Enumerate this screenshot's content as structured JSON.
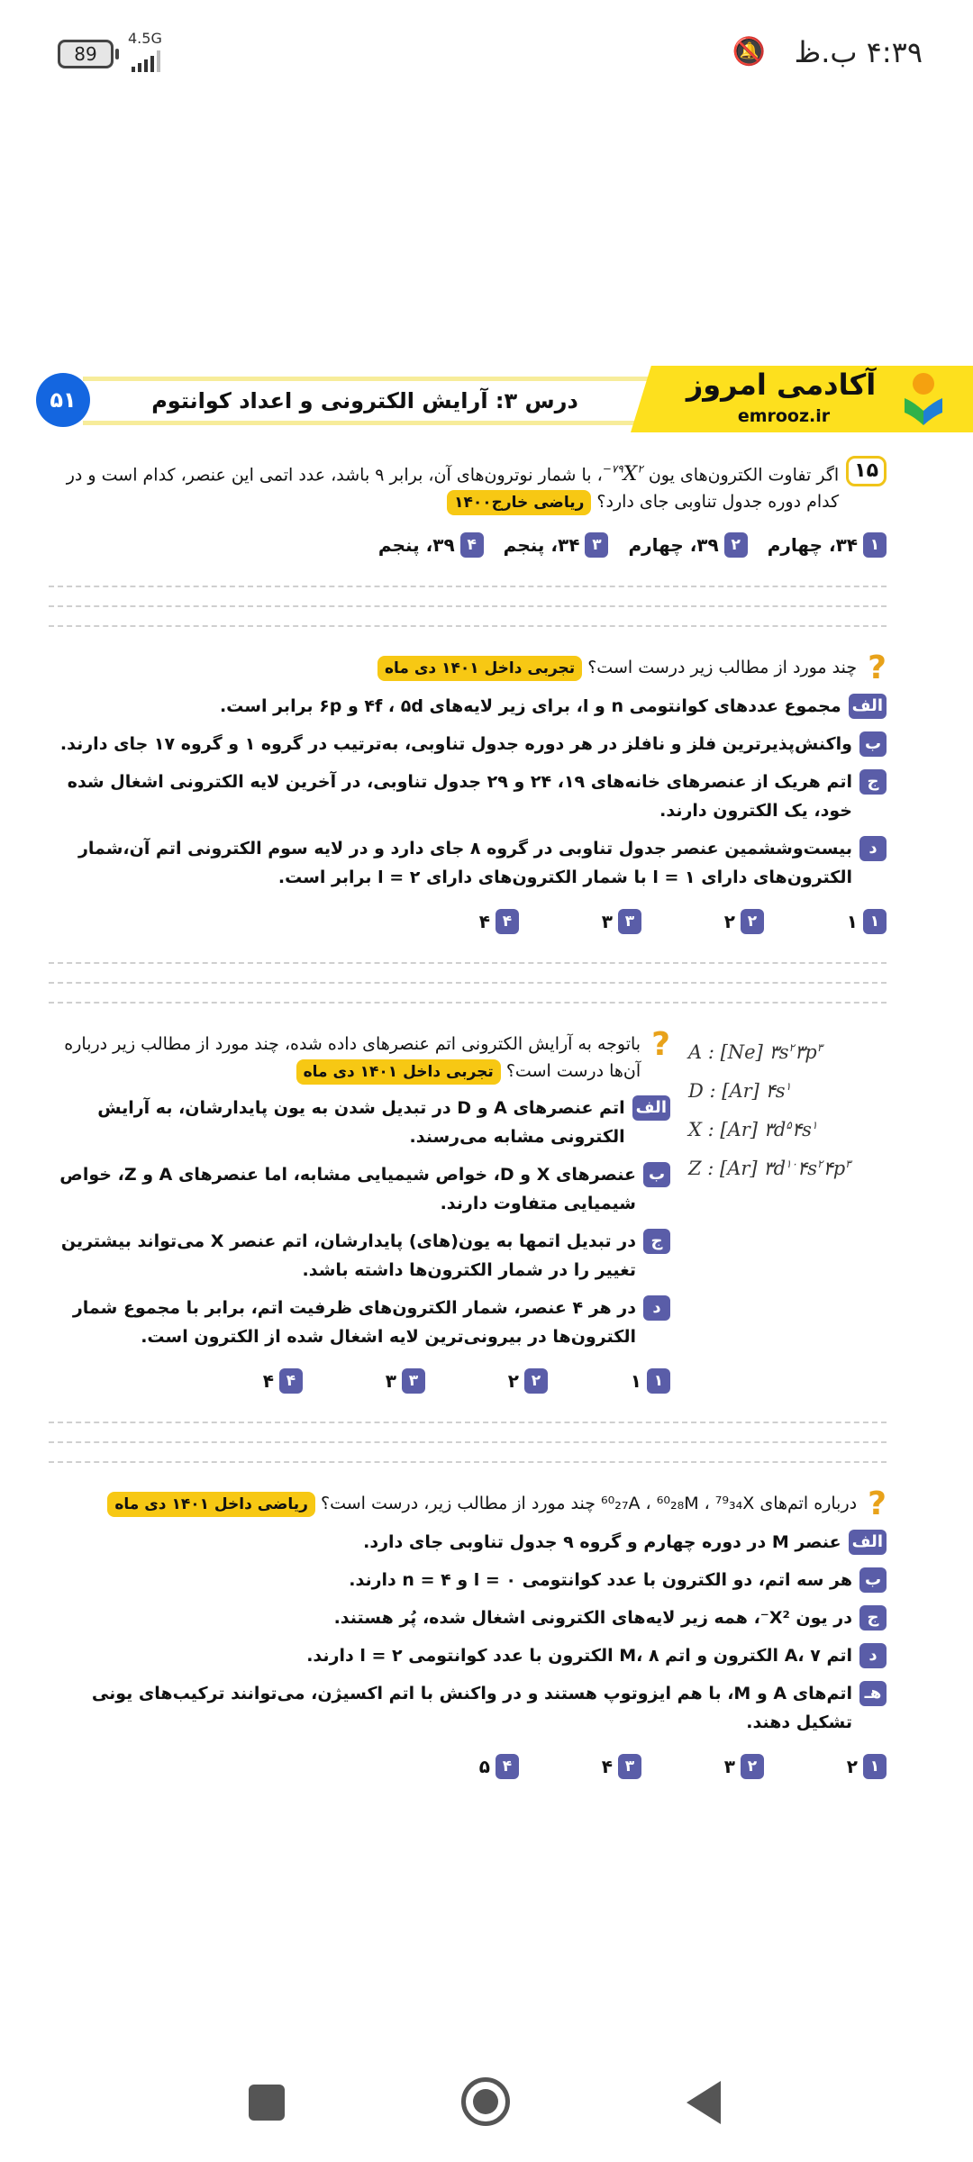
{
  "status_bar": {
    "battery": "89",
    "network": "4.5G",
    "time": "۴:۳۹ ب.ظ",
    "icons": [
      "battery-icon",
      "signal-icon",
      "mute-icon"
    ]
  },
  "header": {
    "page_number": "۵۱",
    "lesson_title": "درس ۳: آرایش الکترونی و اعداد کوانتوم",
    "logo_text": "آکادمی امروز",
    "logo_url": "emrooz.ir"
  },
  "colors": {
    "accent_blue": "#1466e0",
    "label_purple": "#5a5da8",
    "tag_yellow": "#f7c814",
    "logo_yellow": "#fde01e"
  },
  "questions": [
    {
      "number": "۱۵",
      "stem_before": "اگر تفاوت الکترون‌های یون",
      "ion": {
        "symbol": "X",
        "mass": "۷۹",
        "charge": "۲−"
      },
      "stem_after": "، با شمار نوترون‌های آن، برابر ۹ باشد، عدد اتمی این عنصر، کدام است و در کدام دوره جدول تناوبی جای دارد؟",
      "tag": "ریاضی خارج۱۴۰۰",
      "items": [],
      "options": [
        {
          "n": "۱",
          "text": "۳۴، چهارم"
        },
        {
          "n": "۲",
          "text": "۳۹، چهارم"
        },
        {
          "n": "۳",
          "text": "۳۴، پنجم"
        },
        {
          "n": "۴",
          "text": "۳۹، پنجم"
        }
      ]
    },
    {
      "number": "?",
      "stem_before": "چند مورد از مطالب زیر درست است؟",
      "tag": "تجربی داخل ۱۴۰۱ دی ماه",
      "items": [
        {
          "l": "الف",
          "t": "مجموع عددهای کوانتومی n و l، برای زیر لایه‌های ۴f ، ۵d و ۶p برابر است."
        },
        {
          "l": "ب",
          "t": "واکنش‌پذیرترین فلز و نافلز در هر دوره جدول تناوبی، به‌ترتیب در گروه ۱ و گروه ۱۷ جای دارند."
        },
        {
          "l": "ج",
          "t": "اتم هریک از عنصرهای خانه‌های ۱۹، ۲۴ و ۲۹ جدول تناوبی، در آخرین لایه الکترونی اشغال شده خود، یک الکترون دارند."
        },
        {
          "l": "د",
          "t": "بیست‌وششمین عنصر جدول تناوبی در گروه ۸ جای دارد و در لایه سوم الکترونی اتم آن،شمار الکترون‌های دارای l = ۱  با شمار الکترون‌های دارای l = ۲ برابر است."
        }
      ],
      "options": [
        {
          "n": "۱",
          "text": "۱"
        },
        {
          "n": "۲",
          "text": "۲"
        },
        {
          "n": "۳",
          "text": "۳"
        },
        {
          "n": "۴",
          "text": "۴"
        }
      ]
    },
    {
      "number": "?",
      "stem_before": "باتوجه به آرایش الکترونی اتم عنصرهای داده شده، چند مورد از مطالب زیر درباره آن‌ها درست است؟",
      "tag": "تجربی داخل ۱۴۰۱ دی ماه",
      "items": [
        {
          "l": "الف",
          "t": "اتم عنصرهای A و D در تبدیل شدن به یون پایدارشان، به آرایش الکترونی مشابه می‌رسند."
        },
        {
          "l": "ب",
          "t": "عنصرهای X و D، خواص شیمیایی مشابه، اما عنصرهای A و Z، خواص شیمیایی متفاوت دارند."
        },
        {
          "l": "ج",
          "t": "در تبدیل اتمها به یون(های) پایدارشان، اتم عنصر X می‌تواند بیشترین تغییر را در شمار الکترون‌ها داشته باشد."
        },
        {
          "l": "د",
          "t": "در هر ۴ عنصر، شمار الکترون‌های ظرفیت اتم، برابر با مجموع شمار الکترون‌ها در بیرونی‌ترین لایه اشغال شده از الکترون است."
        }
      ],
      "options": [
        {
          "n": "۱",
          "text": "۱"
        },
        {
          "n": "۲",
          "text": "۲"
        },
        {
          "n": "۳",
          "text": "۳"
        },
        {
          "n": "۴",
          "text": "۴"
        }
      ]
    },
    {
      "number": "?",
      "stem_before": "درباره اتم‌های ⁶⁰₂₇A ، ⁶⁰₂₈M ، ⁷⁹₃₄X چند مورد از مطالب زیر، درست است؟",
      "tag": "ریاضی داخل ۱۴۰۱ دی ماه",
      "items": [
        {
          "l": "الف",
          "t": "عنصر M در دوره چهارم و گروه ۹ جدول تناوبی جای دارد."
        },
        {
          "l": "ب",
          "t": "هر سه اتم، دو الکترون با عدد کوانتومی l = ۰ و n = ۴ دارند."
        },
        {
          "l": "ج",
          "t": "در یون X²⁻، همه زیر لایه‌های الکترونی اشغال شده، پُر هستند."
        },
        {
          "l": "د",
          "t": "اتم A، ۷ الکترون و اتم M، ۸ الکترون با عدد کوانتومی l = ۲ دارند."
        },
        {
          "l": "هـ",
          "t": "اتم‌های A و M، با هم ایزوتوپ هستند و در واکنش با اتم اکسیژن، می‌توانند ترکیب‌های یونی تشکیل دهند."
        }
      ],
      "options": [
        {
          "n": "۱",
          "text": "۲"
        },
        {
          "n": "۲",
          "text": "۳"
        },
        {
          "n": "۳",
          "text": "۴"
        },
        {
          "n": "۴",
          "text": "۵"
        }
      ]
    }
  ],
  "configs": [
    {
      "el": "A",
      "core": "Ne",
      "parts": [
        [
          "۳s",
          "۲"
        ],
        [
          "۳p",
          "۳"
        ]
      ]
    },
    {
      "el": "D",
      "core": "Ar",
      "parts": [
        [
          "۴s",
          "۱"
        ]
      ]
    },
    {
      "el": "X",
      "core": "Ar",
      "parts": [
        [
          "۳d",
          "۵"
        ],
        [
          "۴s",
          "۱"
        ]
      ]
    },
    {
      "el": "Z",
      "core": "Ar",
      "parts": [
        [
          "۳d",
          "۱۰"
        ],
        [
          "۴s",
          "۲"
        ],
        [
          "۴p",
          "۳"
        ]
      ]
    }
  ],
  "nav": {
    "icons": [
      "recents-square-icon",
      "home-circle-icon",
      "back-triangle-icon"
    ]
  }
}
